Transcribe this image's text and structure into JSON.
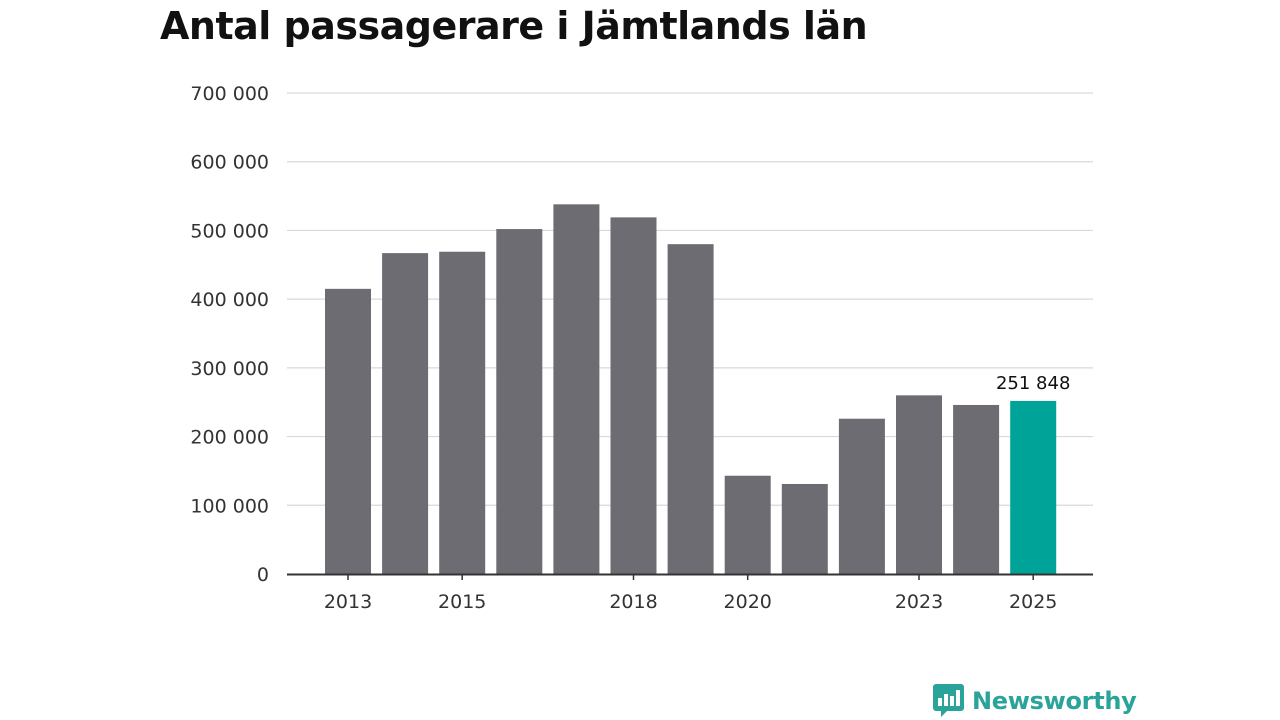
{
  "colors": {
    "bar": "#6d6c73",
    "highlight": "#00a398",
    "grid": "#d9d9d9",
    "axis": "#333333",
    "brand": "#2aa39a"
  },
  "brand": {
    "name": "Newsworthy",
    "icon": "newsworthy-logo-icon"
  },
  "chart_data": {
    "type": "bar",
    "title": "Antal passagerare i Jämtlands län",
    "xlabel": "",
    "ylabel": "",
    "ylim": [
      0,
      700000
    ],
    "yticks": [
      0,
      100000,
      200000,
      300000,
      400000,
      500000,
      600000,
      700000
    ],
    "ytick_labels": [
      "0",
      "100 000",
      "200 000",
      "300 000",
      "400 000",
      "500 000",
      "600 000",
      "700 000"
    ],
    "categories": [
      "2013",
      "2014",
      "2015",
      "2016",
      "2017",
      "2018",
      "2019",
      "2020",
      "2021",
      "2022",
      "2023",
      "2024",
      "2025"
    ],
    "xtick_labels": [
      "2013",
      "2015",
      "2018",
      "2020",
      "2023",
      "2025"
    ],
    "values": [
      415000,
      467000,
      469000,
      502000,
      538000,
      519000,
      480000,
      143000,
      131000,
      226000,
      260000,
      246000,
      251848
    ],
    "highlight_index": 12,
    "highlight_label": "251 848",
    "grid": true
  }
}
